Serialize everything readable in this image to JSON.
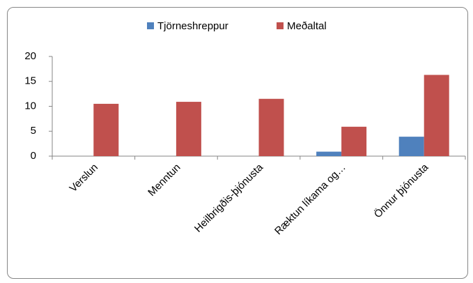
{
  "chart_data": {
    "type": "bar",
    "categories": [
      "Verslun",
      "Menntun",
      "Heilbrigðis-þjónusta",
      "Ræktun líkama og…",
      "Önnur þjónusta"
    ],
    "series": [
      {
        "name": "Tjörneshreppur",
        "color": "#4f81bd",
        "values": [
          0,
          0,
          0,
          0.9,
          3.9
        ]
      },
      {
        "name": "Meðaltal",
        "color": "#c0504d",
        "values": [
          10.5,
          10.9,
          11.5,
          5.9,
          16.3
        ]
      }
    ],
    "ylim": [
      0,
      20
    ],
    "yticks": [
      0,
      5,
      10,
      15,
      20
    ],
    "grid": false,
    "legend": "top"
  }
}
